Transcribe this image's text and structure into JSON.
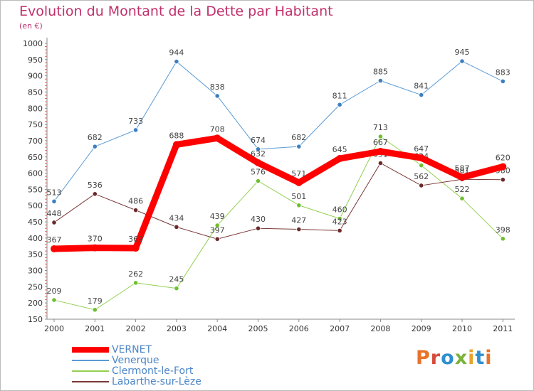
{
  "header": {
    "title": "Evolution du Montant de la Dette par Habitant",
    "subtitle": "(en €)"
  },
  "logo": {
    "text": "Proxiti",
    "colors": [
      "#e8732a",
      "#d74a3a",
      "#2f8fd0",
      "#7bb33a",
      "#e8a52a",
      "#2f8fd0"
    ]
  },
  "chart_data": {
    "type": "line",
    "title": "Evolution du Montant de la Dette par Habitant",
    "subtitle": "(en €)",
    "xlabel": "",
    "ylabel": "",
    "x": [
      "2000",
      "2001",
      "2002",
      "2003",
      "2004",
      "2005",
      "2006",
      "2007",
      "2008",
      "2009",
      "2010",
      "2011"
    ],
    "ylim": [
      150,
      1000
    ],
    "yticks": [
      150,
      200,
      250,
      300,
      350,
      400,
      450,
      500,
      550,
      600,
      650,
      700,
      750,
      800,
      850,
      900,
      950,
      1000
    ],
    "grid": false,
    "legend_position": "bottom-left",
    "series": [
      {
        "name": "Venerque",
        "color": "#5b9bd5",
        "point_color": "#3d7fc1",
        "width": 1,
        "values": [
          513,
          682,
          733,
          944,
          838,
          674,
          682,
          811,
          885,
          841,
          945,
          883
        ]
      },
      {
        "name": "Clermont-le-Fort",
        "color": "#92d050",
        "point_color": "#6fbf2f",
        "width": 1,
        "values": [
          209,
          179,
          262,
          245,
          439,
          576,
          501,
          460,
          713,
          624,
          522,
          398
        ]
      },
      {
        "name": "Labarthe-sur-Lèze",
        "color": "#7b3838",
        "point_color": "#6a2a2a",
        "width": 1,
        "values": [
          448,
          536,
          486,
          434,
          397,
          430,
          427,
          423,
          631,
          562,
          581,
          580
        ]
      },
      {
        "name": "VERNET",
        "color": "#ff0000",
        "point_color": "#ff0000",
        "width": 9,
        "values": [
          367,
          370,
          369,
          688,
          708,
          632,
          571,
          645,
          667,
          647,
          587,
          620
        ]
      }
    ],
    "legend_order": [
      "VERNET",
      "Venerque",
      "Clermont-le-Fort",
      "Labarthe-sur-Lèze"
    ]
  }
}
